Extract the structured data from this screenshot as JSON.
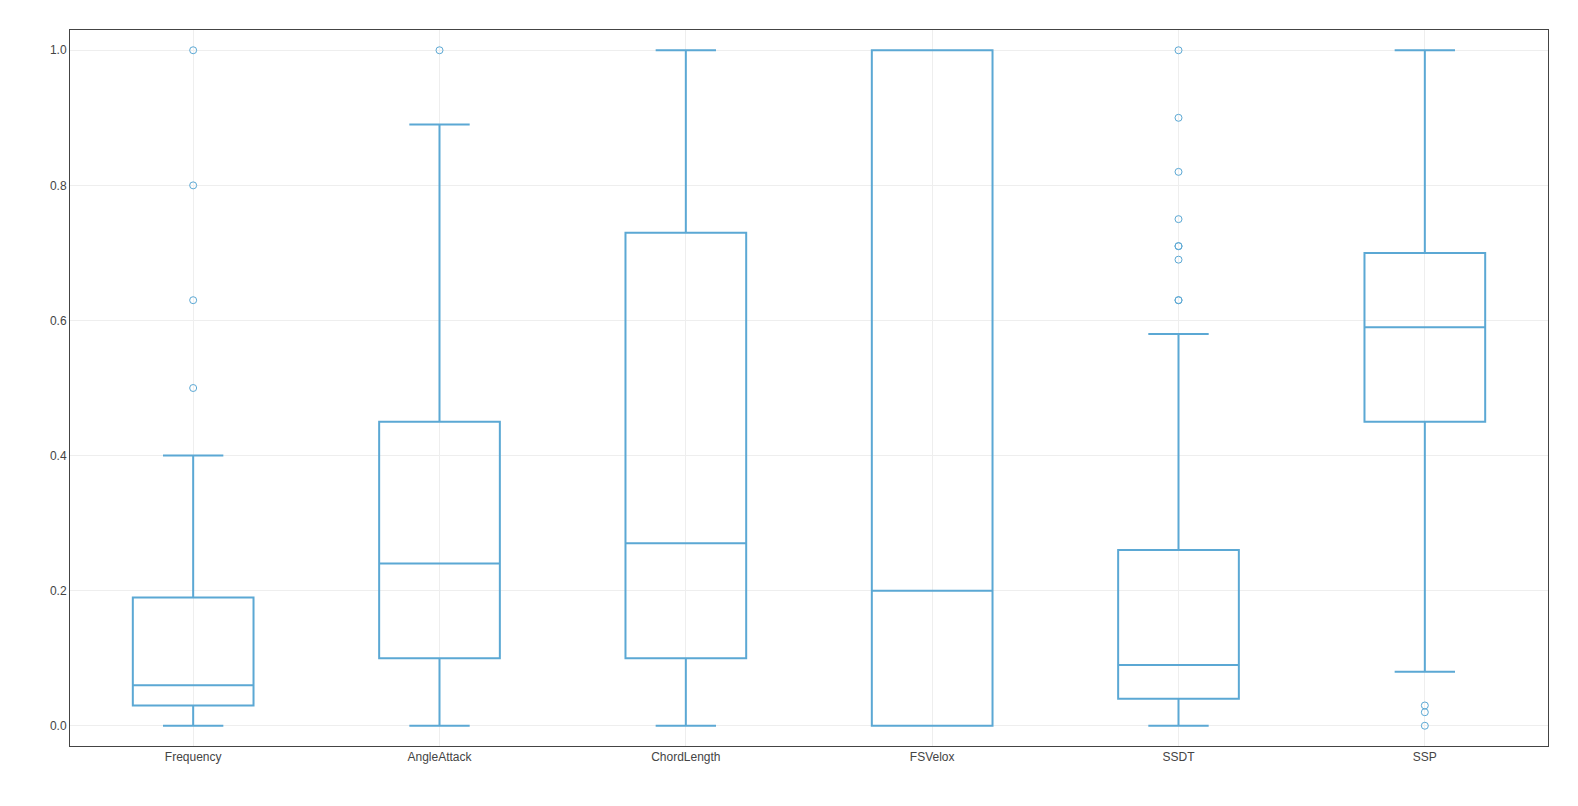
{
  "chart_data": {
    "type": "box",
    "categories": [
      "Frequency",
      "AngleAttack",
      "ChordLength",
      "FSVelox",
      "SSDT",
      "SSP"
    ],
    "q1": [
      0.03,
      0.1,
      0.1,
      0.0,
      0.04,
      0.45
    ],
    "median": [
      0.06,
      0.24,
      0.27,
      0.2,
      0.09,
      0.59
    ],
    "q3": [
      0.19,
      0.45,
      0.73,
      1.0,
      0.26,
      0.7
    ],
    "whislo": [
      0.0,
      0.0,
      0.0,
      0.0,
      0.0,
      0.08
    ],
    "whishi": [
      0.4,
      0.89,
      1.0,
      1.0,
      0.58,
      1.0
    ],
    "fliers": [
      [
        0.5,
        0.63,
        0.8,
        1.0
      ],
      [
        1.0
      ],
      [],
      [],
      [
        0.63,
        0.63,
        0.69,
        0.71,
        0.71,
        0.75,
        0.82,
        0.9,
        1.0
      ],
      [
        0.0,
        0.02,
        0.03
      ]
    ],
    "color": "#5ba8d4",
    "ylim": [
      -0.03,
      1.03
    ],
    "yticks": [
      {
        "value": 0.0,
        "label": "0.0"
      },
      0.2,
      0.4,
      0.6,
      0.8,
      {
        "value": 1.0,
        "label": "1.0"
      }
    ],
    "grid": true
  }
}
